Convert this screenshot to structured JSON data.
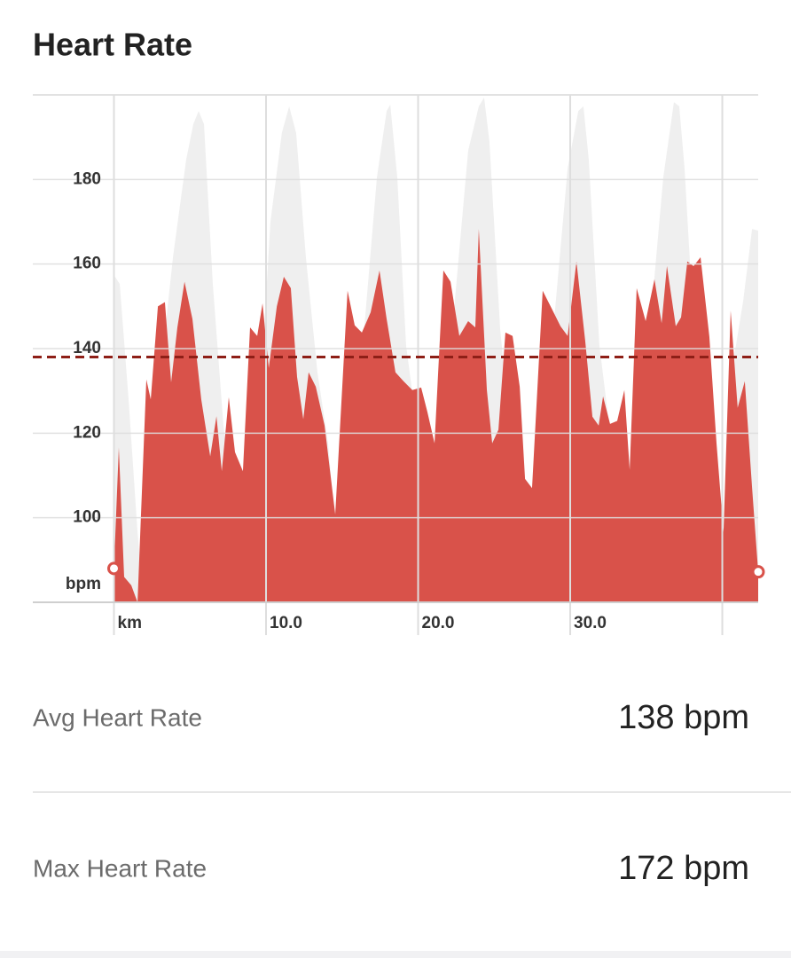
{
  "chart_data": {
    "type": "area",
    "title": "Heart Rate",
    "y_label": "bpm",
    "xlim": [
      0,
      42.36
    ],
    "ylim": [
      80,
      200
    ],
    "yticks": [
      100,
      120,
      140,
      160,
      180
    ],
    "xticks": [
      {
        "value": 0,
        "label": "km"
      },
      {
        "value": 10,
        "label": "10.0"
      },
      {
        "value": 20,
        "label": "20.0"
      },
      {
        "value": 30,
        "label": "30.0"
      }
    ],
    "xgrid": [
      0,
      10,
      20,
      30,
      40
    ],
    "grid": true,
    "average": 138,
    "average_color": "#8e1f17",
    "series": [
      {
        "color": "#efefef",
        "x": [
          0,
          0.38,
          0.96,
          1.55,
          1.95,
          2.42,
          3.01,
          3.88,
          4.75,
          5.22,
          5.57,
          5.92,
          6.5,
          7.2,
          7.78,
          8.48,
          9.13,
          9.71,
          10.29,
          11.04,
          11.52,
          11.98,
          12.62,
          13.38,
          14.08,
          14.96,
          15.71,
          16.41,
          17.29,
          17.93,
          18.17,
          18.63,
          19.21,
          19.91,
          20.5,
          21.2,
          21.66,
          22.36,
          23.29,
          23.99,
          24.34,
          24.69,
          25.39,
          26.21,
          27.03,
          27.61,
          28.19,
          28.95,
          29.83,
          30.53,
          30.87,
          31.22,
          31.92,
          32.86,
          33.79,
          34.49,
          35.19,
          36.12,
          36.82,
          37.17,
          37.52,
          38.22,
          39.04,
          40.03,
          40.61,
          41.37,
          41.96,
          42.36
        ],
        "values": [
          157.4,
          155.3,
          128.1,
          96.6,
          80,
          105,
          132.3,
          161.6,
          184.7,
          193.1,
          196.2,
          193.1,
          155.3,
          121.8,
          105,
          90.4,
          105,
          134.4,
          170,
          191,
          197.3,
          191,
          161.6,
          134.4,
          117.6,
          80.7,
          105,
          142.8,
          180.5,
          196.2,
          197.7,
          180.5,
          140.7,
          121.8,
          109.2,
          90.4,
          109.2,
          149.1,
          186.8,
          197.3,
          199.4,
          188.9,
          144.9,
          113.4,
          96.6,
          84.1,
          105,
          147,
          182.6,
          196.2,
          197.3,
          184.7,
          140.7,
          113.4,
          93.5,
          107.1,
          142.8,
          180.5,
          198.3,
          197.3,
          182.6,
          138.6,
          107.1,
          88.3,
          134.4,
          151.2,
          168.3,
          167.9
        ]
      },
      {
        "color": "#d9524a",
        "x": [
          0,
          0.32,
          0.67,
          1.14,
          1.55,
          2.13,
          2.42,
          2.89,
          3.35,
          3.76,
          4.17,
          4.64,
          5.16,
          5.74,
          6.33,
          6.74,
          7.09,
          7.55,
          7.96,
          8.48,
          8.95,
          9.42,
          9.77,
          10.18,
          10.71,
          11.17,
          11.63,
          12.04,
          12.45,
          12.8,
          13.27,
          13.85,
          14.55,
          15.36,
          15.83,
          16.3,
          16.88,
          17.46,
          17.93,
          18.51,
          19.04,
          19.62,
          20.2,
          20.61,
          21.08,
          21.66,
          22.13,
          22.71,
          23.29,
          23.76,
          23.99,
          24.52,
          24.87,
          25.28,
          25.74,
          26.21,
          26.68,
          27.03,
          27.49,
          28.19,
          28.78,
          29.36,
          29.83,
          30.41,
          30.99,
          31.46,
          31.87,
          32.16,
          32.62,
          33.09,
          33.56,
          33.91,
          34.37,
          34.96,
          35.54,
          36.01,
          36.36,
          36.94,
          37.29,
          37.7,
          38.11,
          38.57,
          39.15,
          39.62,
          40.08,
          40.55,
          41.01,
          41.48,
          41.96,
          42.36
        ],
        "values": [
          88,
          116.6,
          86,
          84,
          80,
          132.7,
          128,
          150,
          151,
          132,
          145,
          155.8,
          147,
          128,
          114.5,
          124,
          111,
          128.5,
          115.5,
          111,
          145,
          143,
          150.7,
          135.4,
          150,
          157,
          154.3,
          133.3,
          123.3,
          134.4,
          131,
          121.8,
          100.8,
          153.7,
          145.5,
          143.8,
          148.6,
          158.5,
          147,
          134.4,
          132.3,
          130.2,
          130.8,
          125,
          117.6,
          158.5,
          155.8,
          143,
          146.5,
          145,
          168.3,
          130.2,
          117.6,
          120.8,
          143.8,
          143,
          131,
          109.2,
          107,
          153.7,
          149.5,
          145.3,
          143,
          160.6,
          141.7,
          123.9,
          121.8,
          128.7,
          122.2,
          122.9,
          130.2,
          111.3,
          154.3,
          146.5,
          156.4,
          146,
          159.5,
          145.3,
          147.4,
          160.6,
          159.5,
          161.6,
          142.8,
          117.6,
          96.6,
          149,
          126,
          132.3,
          107,
          87.2
        ]
      }
    ]
  },
  "stats": [
    {
      "label": "Avg Heart Rate",
      "value": "138 bpm"
    },
    {
      "label": "Max Heart Rate",
      "value": "172 bpm"
    }
  ]
}
